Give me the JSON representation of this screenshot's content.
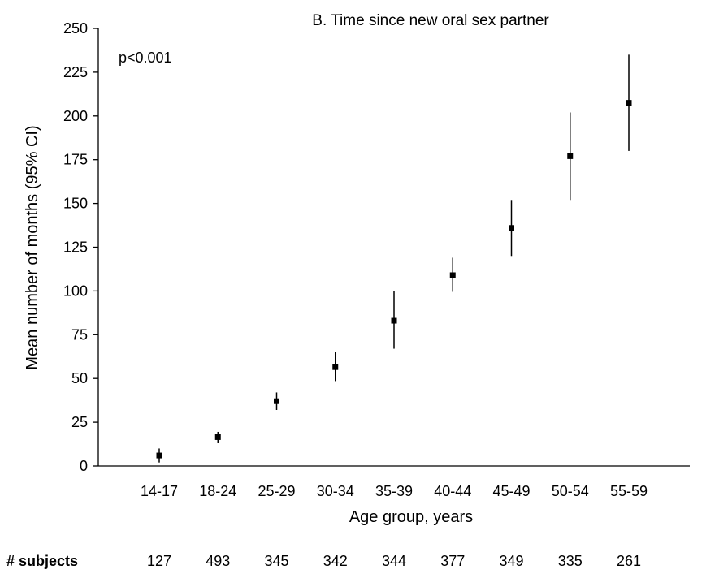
{
  "chart_data": {
    "type": "scatter",
    "title": "B. Time since new oral sex partner",
    "annotation": "p<0.001",
    "xlabel": "Age group, years",
    "ylabel": "Mean number of months (95% CI)",
    "ylim": [
      0,
      250
    ],
    "yticks": [
      0,
      25,
      50,
      75,
      100,
      125,
      150,
      175,
      200,
      225,
      250
    ],
    "grid": false,
    "categories": [
      "14-17",
      "18-24",
      "25-29",
      "30-34",
      "35-39",
      "40-44",
      "45-49",
      "50-54",
      "55-59"
    ],
    "series": [
      {
        "values": [
          6,
          16.5,
          37,
          56.5,
          83,
          109,
          136,
          177,
          207.5
        ],
        "ci_lower": [
          2,
          13,
          32,
          48.5,
          67,
          99.5,
          120,
          152,
          180
        ],
        "ci_upper": [
          10,
          19.5,
          42,
          65,
          100,
          119,
          152,
          202,
          235
        ]
      }
    ],
    "subjects_label": "# subjects",
    "subjects": [
      "127",
      "493",
      "345",
      "342",
      "344",
      "377",
      "349",
      "335",
      "261"
    ]
  }
}
